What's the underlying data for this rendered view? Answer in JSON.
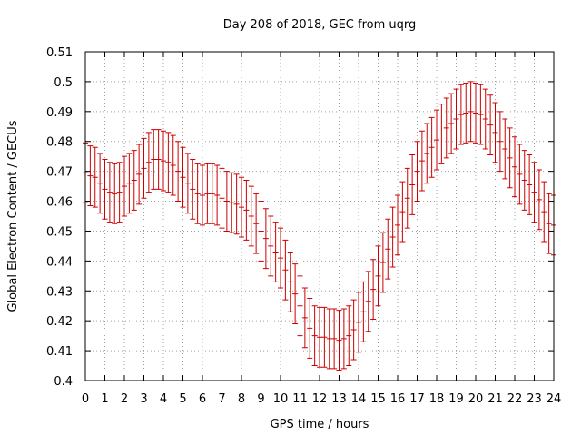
{
  "chart_data": {
    "type": "line",
    "title": "Day 208 of 2018, GEC from uqrg",
    "xlabel": "GPS time / hours",
    "ylabel": "Global Electron Content / GECUs",
    "xlim": [
      0,
      24
    ],
    "ylim": [
      0.4,
      0.51
    ],
    "xticks": [
      "0",
      "1",
      "2",
      "3",
      "4",
      "5",
      "6",
      "7",
      "8",
      "9",
      "10",
      "11",
      "12",
      "13",
      "14",
      "15",
      "16",
      "17",
      "18",
      "19",
      "20",
      "21",
      "22",
      "23",
      "24"
    ],
    "yticks": [
      "0.4",
      "0.41",
      "0.42",
      "0.43",
      "0.44",
      "0.45",
      "0.46",
      "0.47",
      "0.48",
      "0.49",
      "0.5",
      "0.51"
    ],
    "grid": true,
    "error_bar_halfwidth": 0.01,
    "series_color": "#cc0000",
    "x": [
      0,
      0.25,
      0.5,
      0.75,
      1,
      1.25,
      1.5,
      1.75,
      2,
      2.25,
      2.5,
      2.75,
      3,
      3.25,
      3.5,
      3.75,
      4,
      4.25,
      4.5,
      4.75,
      5,
      5.25,
      5.5,
      5.75,
      6,
      6.25,
      6.5,
      6.75,
      7,
      7.25,
      7.5,
      7.75,
      8,
      8.25,
      8.5,
      8.75,
      9,
      9.25,
      9.5,
      9.75,
      10,
      10.25,
      10.5,
      10.75,
      11,
      11.25,
      11.5,
      11.75,
      12,
      12.25,
      12.5,
      12.75,
      13,
      13.25,
      13.5,
      13.75,
      14,
      14.25,
      14.5,
      14.75,
      15,
      15.25,
      15.5,
      15.75,
      16,
      16.25,
      16.5,
      16.75,
      17,
      17.25,
      17.5,
      17.75,
      18,
      18.25,
      18.5,
      18.75,
      19,
      19.25,
      19.5,
      19.75,
      20,
      20.25,
      20.5,
      20.75,
      21,
      21.25,
      21.5,
      21.75,
      22,
      22.25,
      22.5,
      22.75,
      23,
      23.25,
      23.5,
      23.75,
      24
    ],
    "y": [
      0.4695,
      0.4685,
      0.468,
      0.466,
      0.464,
      0.463,
      0.4625,
      0.463,
      0.465,
      0.466,
      0.467,
      0.469,
      0.471,
      0.473,
      0.474,
      0.474,
      0.4735,
      0.473,
      0.472,
      0.47,
      0.468,
      0.466,
      0.464,
      0.4625,
      0.462,
      0.4625,
      0.4625,
      0.462,
      0.461,
      0.46,
      0.4595,
      0.459,
      0.458,
      0.457,
      0.455,
      0.4525,
      0.45,
      0.4475,
      0.445,
      0.443,
      0.441,
      0.437,
      0.433,
      0.429,
      0.425,
      0.421,
      0.4175,
      0.415,
      0.4145,
      0.4145,
      0.414,
      0.414,
      0.4135,
      0.414,
      0.415,
      0.417,
      0.4195,
      0.423,
      0.4265,
      0.4305,
      0.435,
      0.4395,
      0.444,
      0.448,
      0.452,
      0.4565,
      0.461,
      0.4655,
      0.47,
      0.4735,
      0.476,
      0.478,
      0.4805,
      0.4825,
      0.4845,
      0.486,
      0.4875,
      0.489,
      0.4895,
      0.49,
      0.4895,
      0.489,
      0.4875,
      0.4855,
      0.483,
      0.48,
      0.4775,
      0.4745,
      0.4715,
      0.469,
      0.467,
      0.4655,
      0.463,
      0.4605,
      0.4565,
      0.4525,
      0.452
    ]
  }
}
